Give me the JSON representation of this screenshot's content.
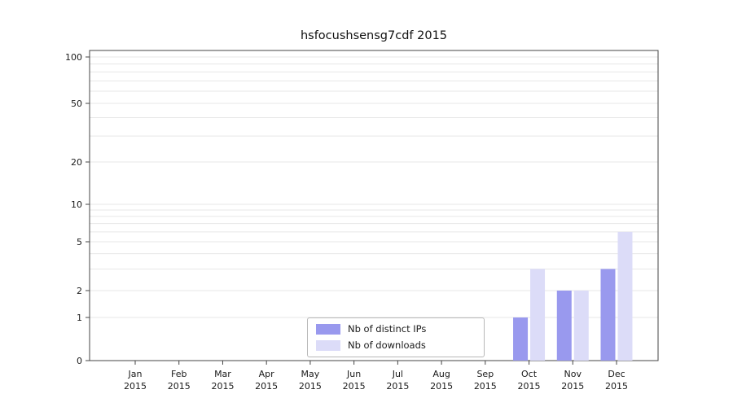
{
  "chart_data": {
    "type": "bar",
    "title": "hsfocushsensg7cdf 2015",
    "categories": [
      "Jan",
      "Feb",
      "Mar",
      "Apr",
      "May",
      "Jun",
      "Jul",
      "Aug",
      "Sep",
      "Oct",
      "Nov",
      "Dec"
    ],
    "year": "2015",
    "series": [
      {
        "name": "Nb of distinct IPs",
        "color": "#9999ee",
        "values": [
          0,
          0,
          0,
          0,
          0,
          0,
          0,
          0,
          0,
          1,
          2,
          3
        ]
      },
      {
        "name": "Nb of downloads",
        "color": "#dcdcf8",
        "values": [
          0,
          0,
          0,
          0,
          0,
          0,
          0,
          0,
          0,
          3,
          2,
          6
        ]
      }
    ],
    "yticks": [
      0,
      1,
      2,
      5,
      10,
      20,
      50,
      100
    ],
    "minor_gridlines": [
      1,
      2,
      3,
      4,
      5,
      6,
      7,
      8,
      9,
      10,
      20,
      30,
      40,
      50,
      60,
      70,
      80,
      90,
      100
    ],
    "ylim": [
      0,
      100
    ],
    "scale": "log-like",
    "grid": true,
    "legend_position": "bottom-center"
  }
}
